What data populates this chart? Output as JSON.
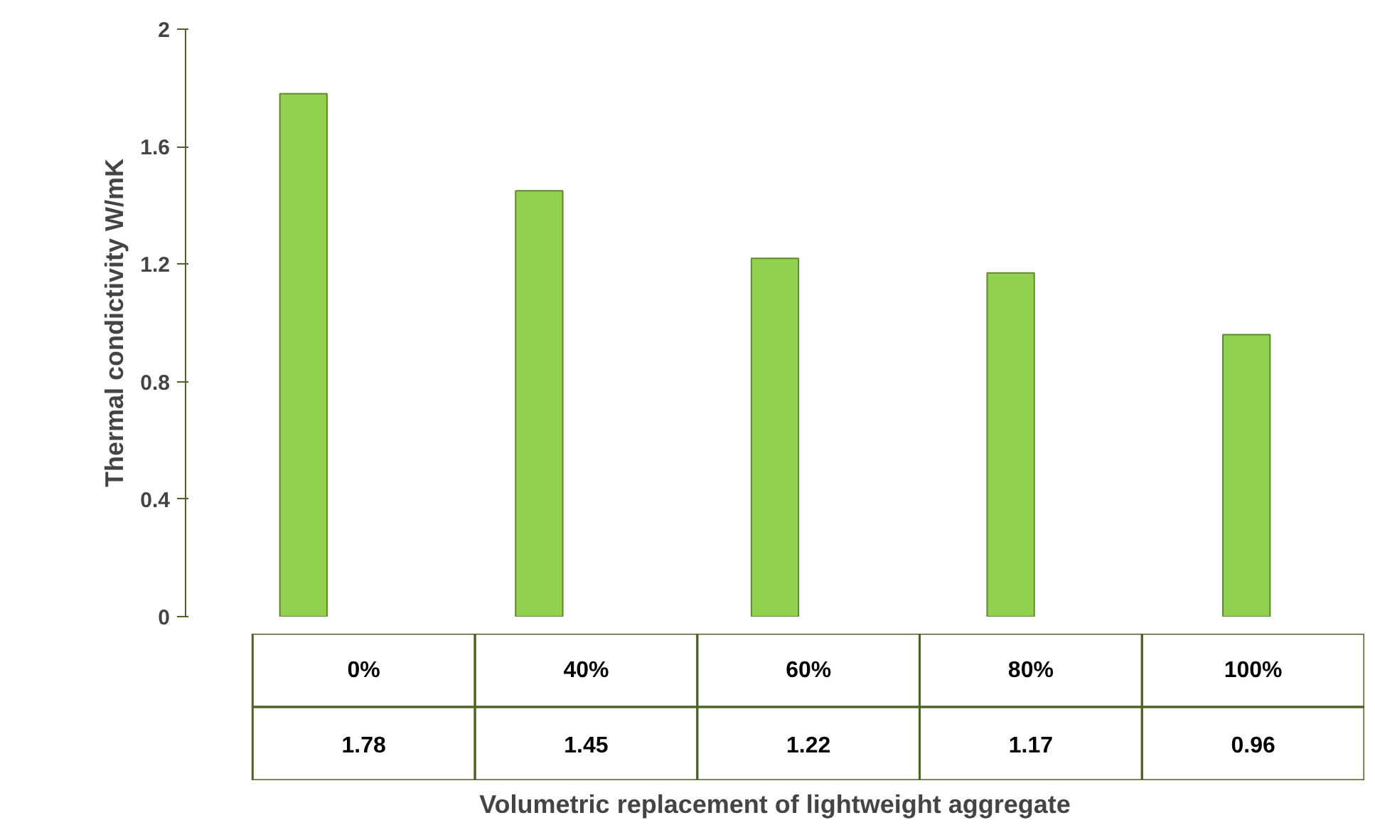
{
  "chart_data": {
    "type": "bar",
    "xlabel": "Volumetric replacement of lightweight aggregate",
    "ylabel": "Thermal condictivity W/mK",
    "categories": [
      "0%",
      "40%",
      "60%",
      "80%",
      "100%"
    ],
    "values": [
      1.78,
      1.45,
      1.22,
      1.17,
      0.96
    ],
    "color": "#92d050",
    "ylim": [
      0,
      2
    ],
    "yticks": [
      0,
      0.4,
      0.8,
      1.2,
      1.6,
      2
    ],
    "data_labels": true
  }
}
